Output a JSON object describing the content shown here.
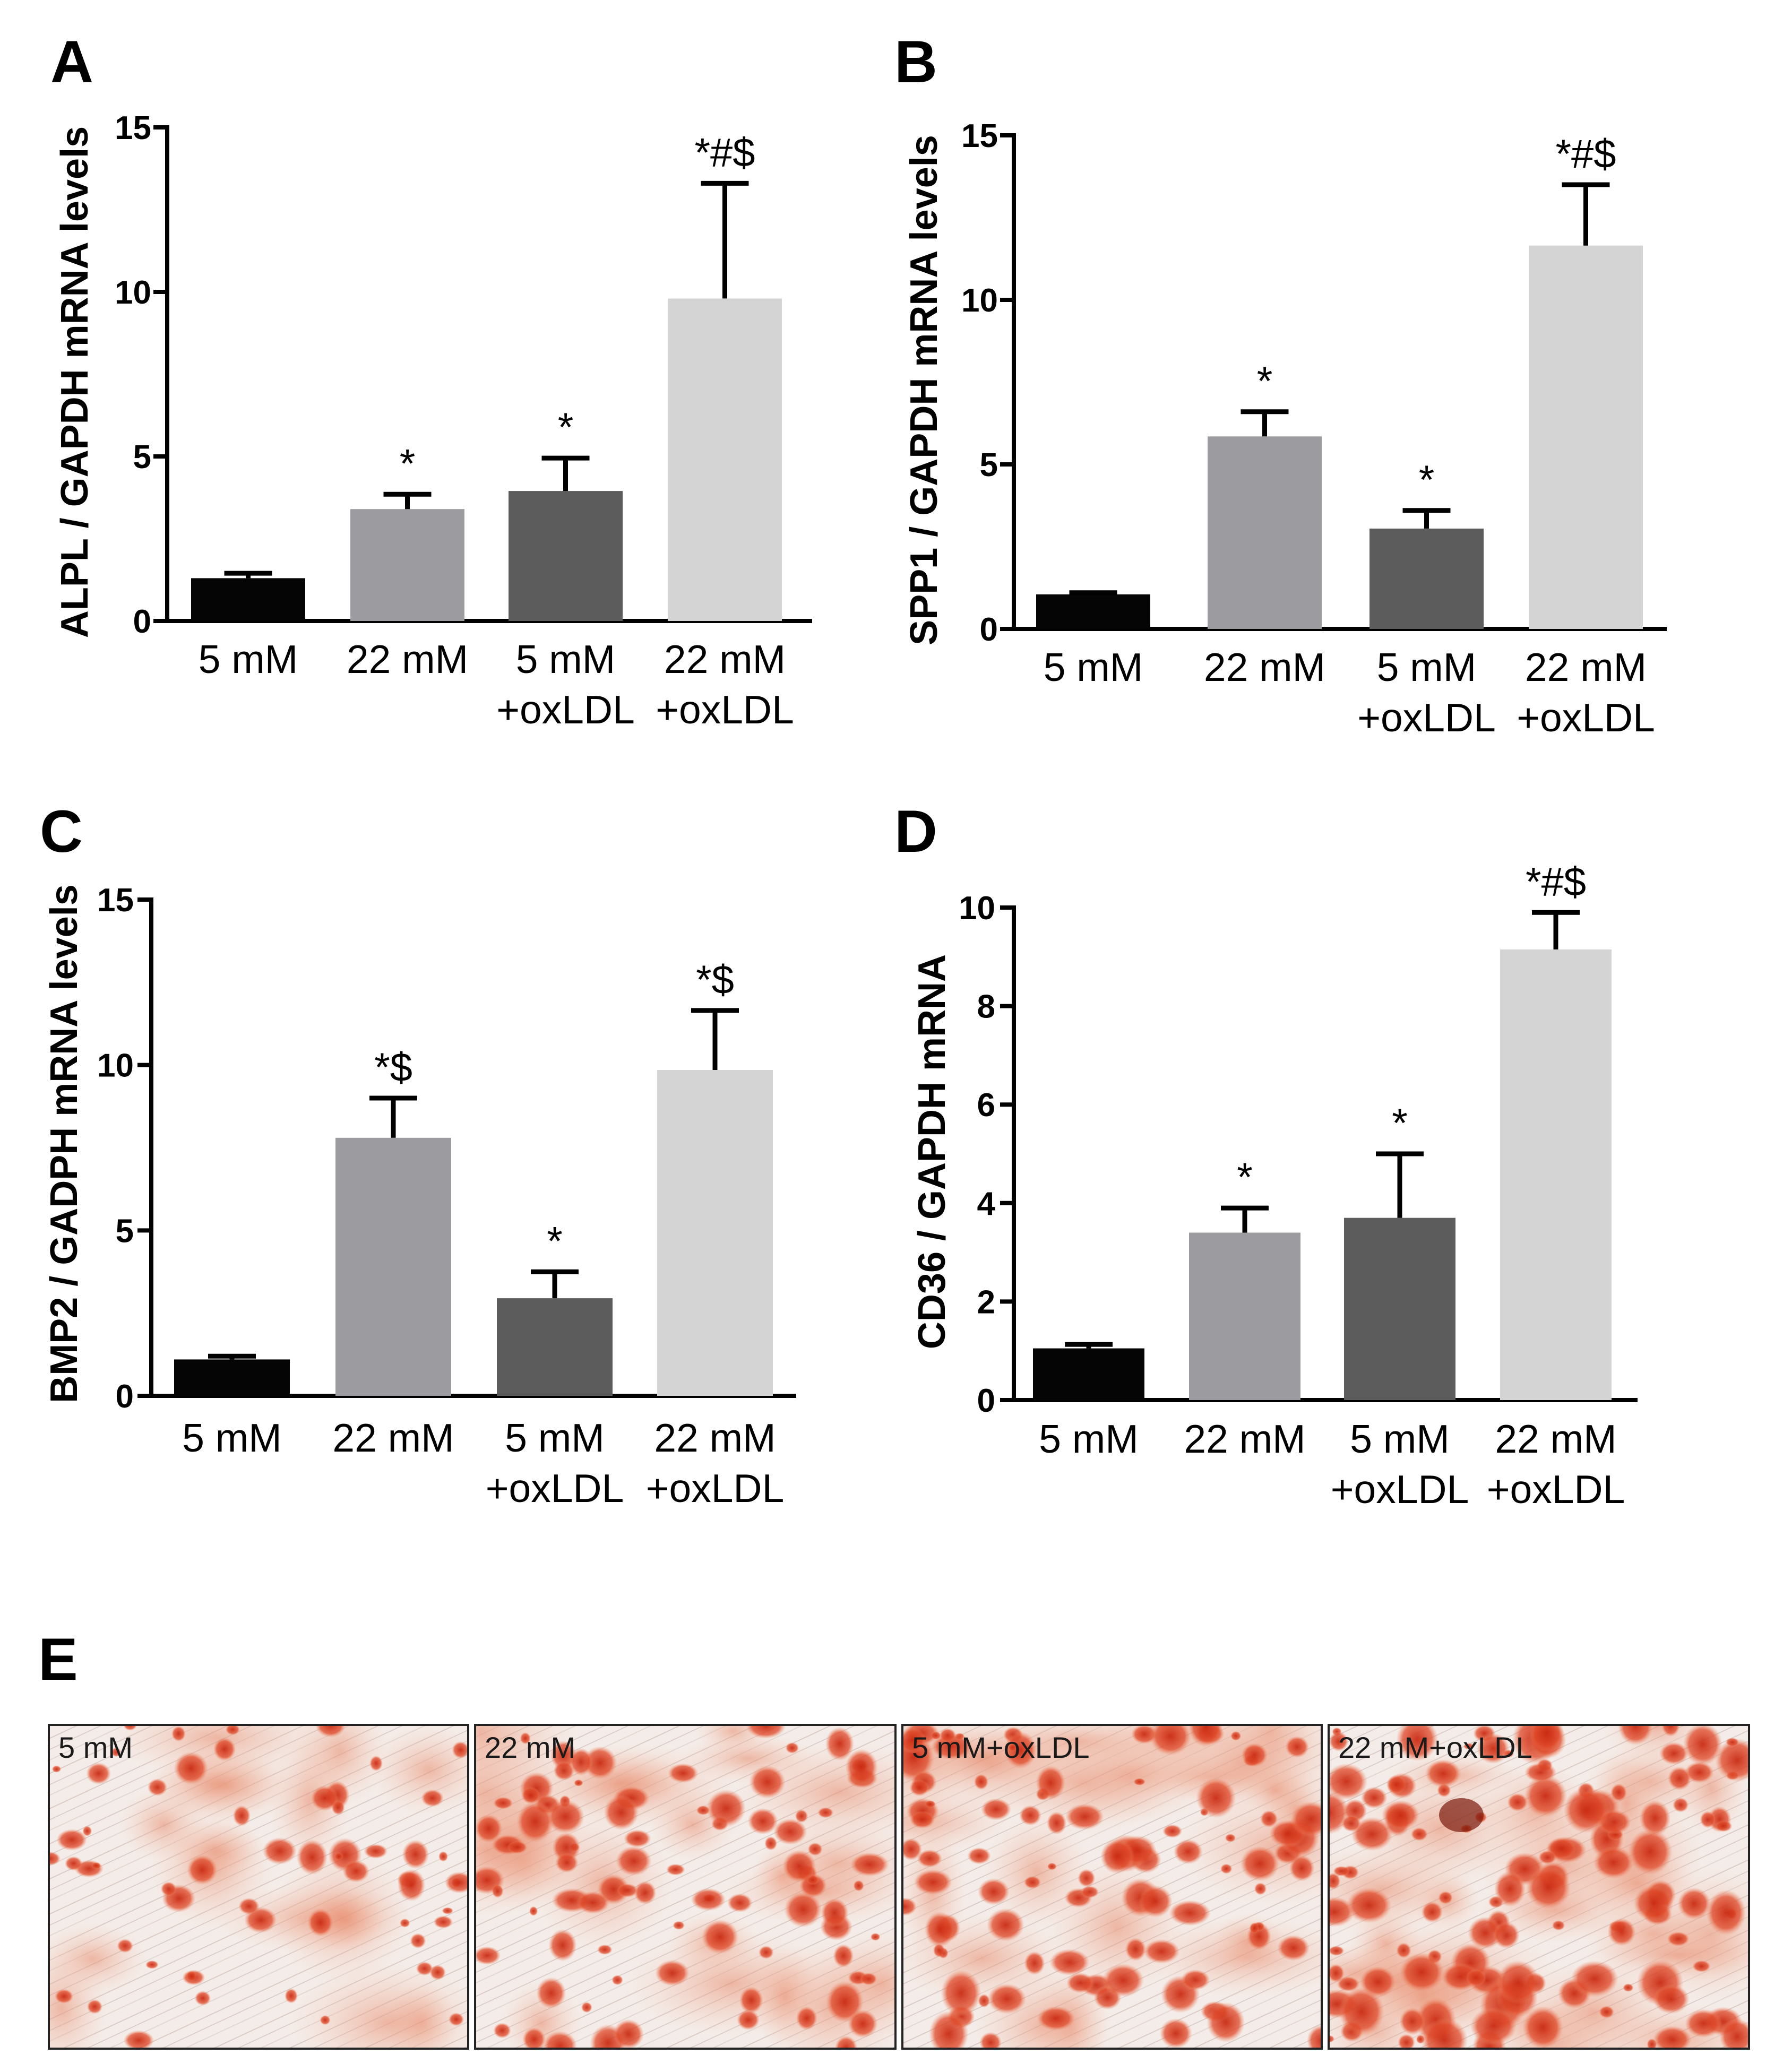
{
  "figure": {
    "panel_e_letter": "E",
    "micrographs": [
      {
        "label": "5 mM",
        "intensity": 0.3
      },
      {
        "label": "22 mM",
        "intensity": 0.55
      },
      {
        "label": "5 mM+oxLDL",
        "intensity": 0.62
      },
      {
        "label": "22 mM+oxLDL",
        "intensity": 0.85
      }
    ]
  },
  "colors": {
    "bar_colors": [
      "#050505",
      "#9c9ca0",
      "#5c5c5c",
      "#d4d4d4"
    ],
    "stain_red": "#d8341e",
    "stain_orange": "#e88a5a",
    "background": "#ffffff"
  },
  "chart_data": [
    {
      "panel": "A",
      "type": "bar",
      "ylabel": "ALPL / GAPDH mRNA levels",
      "categories": [
        [
          "5 mM"
        ],
        [
          "22 mM"
        ],
        [
          "5 mM",
          "+oxLDL"
        ],
        [
          "22 mM",
          "+oxLDL"
        ]
      ],
      "values": [
        1.3,
        3.4,
        3.95,
        9.8
      ],
      "errors": [
        0.15,
        0.45,
        1.0,
        3.5
      ],
      "significance": [
        "",
        "*",
        "*",
        "*#$"
      ],
      "ylim": [
        0,
        15
      ],
      "yticks": [
        "0",
        "5",
        "10",
        "15"
      ]
    },
    {
      "panel": "B",
      "type": "bar",
      "ylabel": "SPP1 / GAPDH mRNA levels",
      "categories": [
        [
          "5 mM"
        ],
        [
          "22 mM"
        ],
        [
          "5 mM",
          "+oxLDL"
        ],
        [
          "22 mM",
          "+oxLDL"
        ]
      ],
      "values": [
        1.05,
        5.85,
        3.05,
        11.65
      ],
      "errors": [
        0.05,
        0.75,
        0.55,
        1.85
      ],
      "significance": [
        "",
        "*",
        "*",
        "*#$"
      ],
      "ylim": [
        0,
        15
      ],
      "yticks": [
        "0",
        "5",
        "10",
        "15"
      ]
    },
    {
      "panel": "C",
      "type": "bar",
      "ylabel": "BMP2 / GADPH mRNA levels",
      "categories": [
        [
          "5 mM"
        ],
        [
          "22 mM"
        ],
        [
          "5 mM",
          "+oxLDL"
        ],
        [
          "22 mM",
          "+oxLDL"
        ]
      ],
      "values": [
        1.1,
        7.8,
        2.95,
        9.85
      ],
      "errors": [
        0.1,
        1.2,
        0.8,
        1.8
      ],
      "significance": [
        "",
        "*$",
        "*",
        "*$"
      ],
      "ylim": [
        0,
        15
      ],
      "yticks": [
        "0",
        "5",
        "10",
        "15"
      ]
    },
    {
      "panel": "D",
      "type": "bar",
      "ylabel": "CD36 / GAPDH mRNA",
      "categories": [
        [
          "5 mM"
        ],
        [
          "22 mM"
        ],
        [
          "5 mM",
          "+oxLDL"
        ],
        [
          "22 mM",
          "+oxLDL"
        ]
      ],
      "values": [
        1.05,
        3.4,
        3.7,
        9.15
      ],
      "errors": [
        0.08,
        0.5,
        1.3,
        0.75
      ],
      "significance": [
        "",
        "*",
        "*",
        "*#$"
      ],
      "ylim": [
        0,
        10
      ],
      "yticks": [
        "0",
        "2",
        "4",
        "6",
        "8",
        "10"
      ]
    }
  ]
}
